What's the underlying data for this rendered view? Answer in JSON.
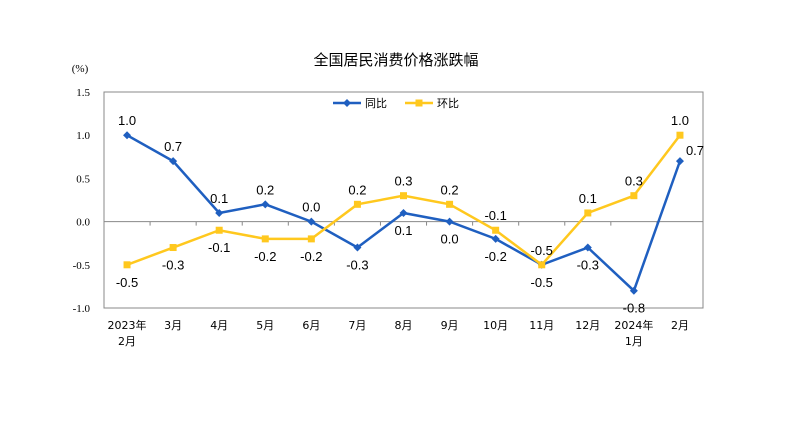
{
  "chart_data": {
    "type": "line",
    "title": "全国居民消费价格涨跌幅",
    "ylabel": "(%)",
    "xlabel": "",
    "ylim": [
      -1.0,
      1.5
    ],
    "yticks": [
      "1.5",
      "1.0",
      "0.5",
      "0.0",
      "-0.5",
      "-1.0"
    ],
    "categories": [
      [
        "2023年",
        "2月"
      ],
      [
        "3月"
      ],
      [
        "4月"
      ],
      [
        "5月"
      ],
      [
        "6月"
      ],
      [
        "7月"
      ],
      [
        "8月"
      ],
      [
        "9月"
      ],
      [
        "10月"
      ],
      [
        "11月"
      ],
      [
        "12月"
      ],
      [
        "2024年",
        "1月"
      ],
      [
        "2月"
      ]
    ],
    "legend_position": "top-center",
    "grid": false,
    "series": [
      {
        "name": "同比",
        "color": "#1F5FC0",
        "marker": "diamond",
        "values": [
          1.0,
          0.7,
          0.1,
          0.2,
          0.0,
          -0.3,
          0.1,
          0.0,
          -0.2,
          -0.5,
          -0.3,
          -0.8,
          0.7
        ]
      },
      {
        "name": "环比",
        "color": "#FFC81E",
        "marker": "square",
        "values": [
          -0.5,
          -0.3,
          -0.1,
          -0.2,
          -0.2,
          0.2,
          0.3,
          0.2,
          -0.1,
          -0.5,
          0.1,
          0.3,
          1.0
        ]
      }
    ]
  }
}
